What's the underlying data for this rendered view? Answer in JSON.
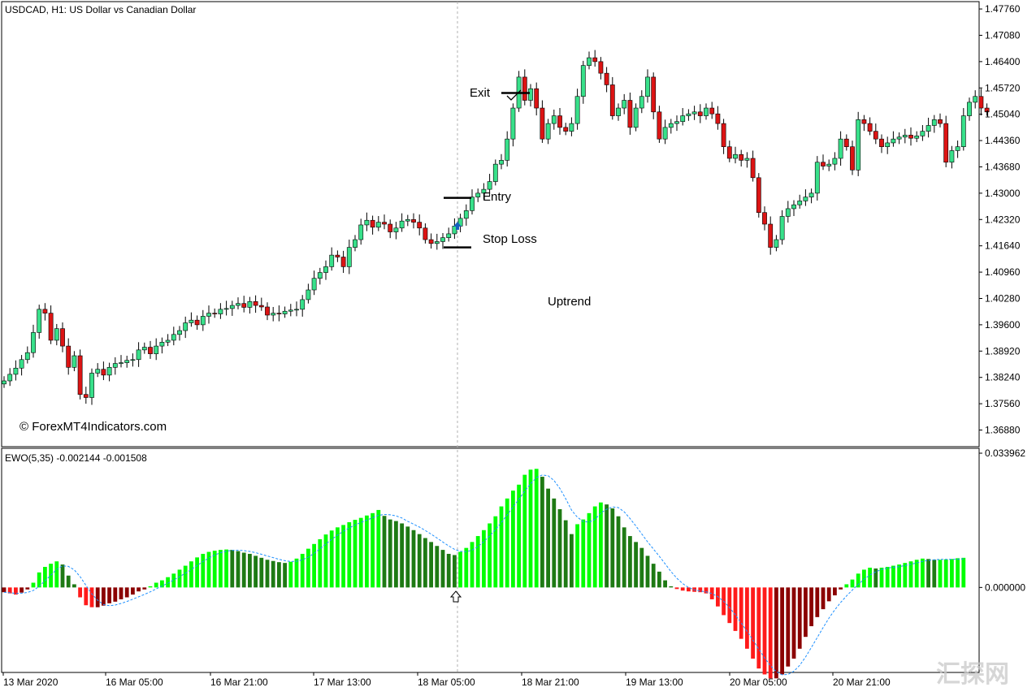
{
  "window": {
    "symbol_title": "USDCAD, H1:  US Dollar vs Canadian Dollar",
    "watermark": "© ForexMT4Indicators.com",
    "corner_logo": "汇探网"
  },
  "annotations": {
    "exit": "Exit",
    "entry": "Entry",
    "stop_loss": "Stop Loss",
    "trend": "Uptrend"
  },
  "colors": {
    "bull": "#38E08A",
    "bear": "#DC1414",
    "ewo_up_pos": "#00FF00",
    "ewo_down_pos": "#1E7A14",
    "ewo_down_neg": "#FF1A1A",
    "ewo_up_neg": "#8B0000",
    "signal_line": "#1E90FF",
    "signal_arrow": "#1560BD"
  },
  "chart_data": [
    {
      "type": "candlestick",
      "title": "USDCAD, H1:  US Dollar vs Canadian Dollar",
      "ylim": [
        1.3645,
        1.4795
      ],
      "y_ticks": [
        "1.47760",
        "1.47080",
        "1.46400",
        "1.45720",
        "1.45040",
        "1.44360",
        "1.43680",
        "1.43000",
        "1.42320",
        "1.41640",
        "1.40960",
        "1.40280",
        "1.39600",
        "1.38920",
        "1.38240",
        "1.37560",
        "1.36880"
      ],
      "x_ticks": [
        "13 Mar 2020",
        "16 Mar 05:00",
        "16 Mar 21:00",
        "17 Mar 13:00",
        "18 Mar 05:00",
        "18 Mar 21:00",
        "19 Mar 13:00",
        "20 Mar 05:00",
        "20 Mar 21:00"
      ],
      "levels": {
        "entry": 1.4288,
        "stop_loss": 1.416,
        "exit": 1.4559
      },
      "closes": [
        1.3815,
        1.3832,
        1.3848,
        1.387,
        1.3888,
        1.394,
        1.4,
        1.399,
        1.392,
        1.395,
        1.3905,
        1.385,
        1.388,
        1.378,
        1.3772,
        1.3835,
        1.3845,
        1.383,
        1.385,
        1.386,
        1.3862,
        1.3868,
        1.387,
        1.3895,
        1.3902,
        1.3885,
        1.3905,
        1.3915,
        1.392,
        1.3935,
        1.3945,
        1.3965,
        1.3972,
        1.396,
        1.3982,
        1.399,
        1.3988,
        1.4,
        1.4002,
        1.401,
        1.4015,
        1.4005,
        1.402,
        1.401,
        1.4006,
        1.3985,
        1.399,
        1.3988,
        1.3995,
        1.3998,
        1.4,
        1.4025,
        1.405,
        1.408,
        1.4095,
        1.411,
        1.414,
        1.4135,
        1.411,
        1.416,
        1.418,
        1.4218,
        1.423,
        1.4212,
        1.4225,
        1.422,
        1.42,
        1.421,
        1.4228,
        1.4232,
        1.4225,
        1.421,
        1.418,
        1.417,
        1.4175,
        1.4185,
        1.4195,
        1.4215,
        1.4235,
        1.4255,
        1.429,
        1.43,
        1.431,
        1.433,
        1.4375,
        1.4385,
        1.444,
        1.452,
        1.46,
        1.454,
        1.457,
        1.452,
        1.444,
        1.448,
        1.45,
        1.447,
        1.446,
        1.448,
        1.455,
        1.463,
        1.465,
        1.464,
        1.461,
        1.458,
        1.45,
        1.452,
        1.454,
        1.447,
        1.452,
        1.455,
        1.46,
        1.451,
        1.444,
        1.447,
        1.448,
        1.4485,
        1.45,
        1.4505,
        1.451,
        1.45,
        1.452,
        1.4505,
        1.448,
        1.442,
        1.439,
        1.44,
        1.4385,
        1.439,
        1.434,
        1.425,
        1.422,
        1.416,
        1.418,
        1.424,
        1.426,
        1.427,
        1.428,
        1.429,
        1.43,
        1.438,
        1.437,
        1.4375,
        1.439,
        1.444,
        1.442,
        1.436,
        1.449,
        1.448,
        1.446,
        1.444,
        1.442,
        1.443,
        1.444,
        1.4445,
        1.445,
        1.4442,
        1.4448,
        1.446,
        1.4475,
        1.449,
        1.448,
        1.438,
        1.441,
        1.442,
        1.45,
        1.4535,
        1.455,
        1.452,
        1.451
      ],
      "value_meaning": "hourly close prices (one candle per hour)"
    },
    {
      "type": "bar",
      "title": "EWO(5,35) -0.002144 -0.001508",
      "ylim": [
        -0.0215,
        0.0352
      ],
      "y_ticks": [
        "0.033962",
        "0.000000"
      ],
      "x_ticks": [
        "13 Mar 2020",
        "16 Mar 05:00",
        "16 Mar 21:00",
        "17 Mar 13:00",
        "18 Mar 05:00",
        "18 Mar 21:00",
        "19 Mar 13:00",
        "20 Mar 05:00",
        "20 Mar 21:00"
      ],
      "series": [
        {
          "name": "EWO(5,35)"
        }
      ],
      "values": [
        -0.0012,
        -0.0015,
        -0.0018,
        -0.0013,
        -0.0005,
        0.0012,
        0.0038,
        0.0052,
        0.006,
        0.0066,
        0.0058,
        0.003,
        0.0008,
        -0.0025,
        -0.0045,
        -0.005,
        -0.005,
        -0.0046,
        -0.004,
        -0.0036,
        -0.003,
        -0.0025,
        -0.0018,
        -0.001,
        -0.0005,
        0.0003,
        0.0012,
        0.0018,
        0.0026,
        0.0035,
        0.0045,
        0.0055,
        0.0066,
        0.0076,
        0.0085,
        0.009,
        0.0093,
        0.0095,
        0.0096,
        0.0095,
        0.0092,
        0.0088,
        0.0085,
        0.008,
        0.0075,
        0.007,
        0.0067,
        0.0064,
        0.0062,
        0.0065,
        0.0073,
        0.0085,
        0.0098,
        0.011,
        0.0122,
        0.0134,
        0.0144,
        0.0152,
        0.0158,
        0.0165,
        0.0171,
        0.0176,
        0.0182,
        0.0188,
        0.0196,
        0.0181,
        0.0172,
        0.0168,
        0.0162,
        0.0154,
        0.0145,
        0.0135,
        0.0125,
        0.0115,
        0.0105,
        0.0095,
        0.0085,
        0.0082,
        0.009,
        0.01,
        0.0115,
        0.013,
        0.0145,
        0.0162,
        0.018,
        0.0205,
        0.0225,
        0.0245,
        0.026,
        0.0285,
        0.0298,
        0.03,
        0.028,
        0.025,
        0.0225,
        0.0198,
        0.017,
        0.0135,
        0.016,
        0.0172,
        0.0188,
        0.0205,
        0.0215,
        0.021,
        0.02,
        0.018,
        0.0152,
        0.013,
        0.0115,
        0.01,
        0.008,
        0.006,
        0.004,
        0.0018,
        0.0003,
        -0.0004,
        -0.0008,
        -0.001,
        -0.0011,
        -0.0012,
        -0.0015,
        -0.003,
        -0.0048,
        -0.007,
        -0.009,
        -0.011,
        -0.013,
        -0.0155,
        -0.018,
        -0.0205,
        -0.022,
        -0.023,
        -0.023,
        -0.022,
        -0.02,
        -0.018,
        -0.0155,
        -0.0125,
        -0.0098,
        -0.0075,
        -0.0055,
        -0.0035,
        -0.002,
        -0.0005,
        0.0008,
        0.002,
        0.0035,
        0.0045,
        0.005,
        0.0048,
        0.005,
        0.0052,
        0.0055,
        0.0058,
        0.0062,
        0.0066,
        0.007,
        0.0073,
        0.0072,
        0.007,
        0.007,
        0.0071,
        0.0072,
        0.0074,
        0.0075
      ],
      "signal_line": "dashed moving average of EWO, drawn on top of histogram",
      "crosshair_x_tick": "18 Mar 05:00"
    }
  ]
}
